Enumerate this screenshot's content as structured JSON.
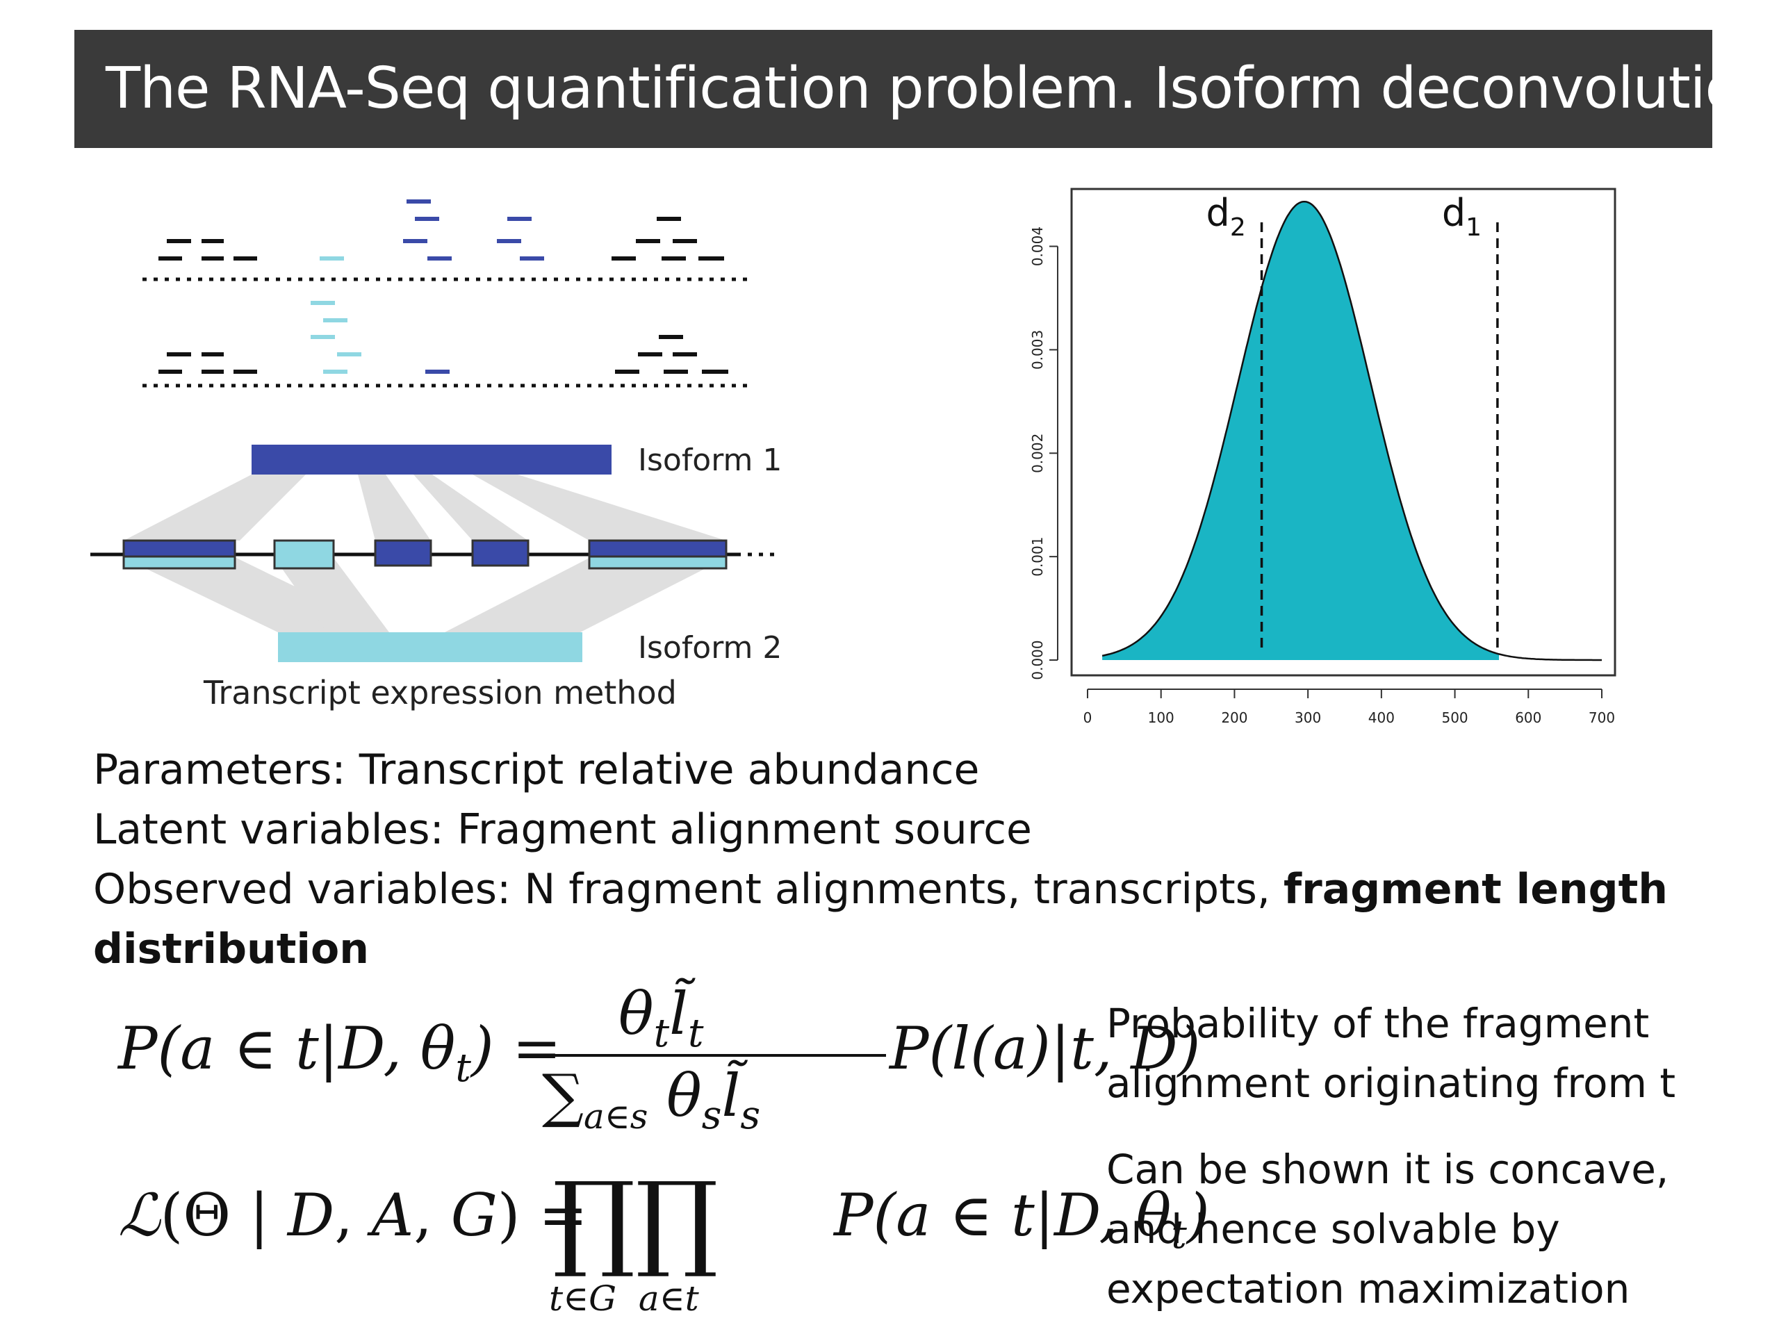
{
  "slide": {
    "title": "The RNA-Seq quantification problem. Isoform deconvolution"
  },
  "schematic": {
    "isoform1_label": "Isoform 1",
    "isoform2_label": "Isoform 2",
    "caption": "Transcript expression method",
    "colors": {
      "isoform1": "#3a4aa8",
      "isoform2": "#8fd7e2",
      "read_black": "#111111"
    }
  },
  "chart_data": {
    "type": "area",
    "x_ticks": [
      "0",
      "100",
      "200",
      "300",
      "400",
      "500",
      "600",
      "700"
    ],
    "y_ticks": [
      "0.000",
      "0.001",
      "0.002",
      "0.003",
      "0.004"
    ],
    "xlim": [
      0,
      700
    ],
    "ylim": [
      0,
      0.0044
    ],
    "fill_color": "#1ab5c4",
    "distribution": {
      "shape": "normal",
      "mean": 295,
      "sd": 90,
      "x_start": 20,
      "x_end": 700
    },
    "markers": [
      {
        "label": "d",
        "subscript": "2",
        "x": 237
      },
      {
        "label": "d",
        "subscript": "1",
        "x": 558
      }
    ]
  },
  "text": {
    "parameters": "Parameters:   Transcript relative abundance",
    "latent": "Latent variables: Fragment alignment source",
    "observed_prefix": "Observed variables: N fragment alignments, transcripts, ",
    "observed_bold": "fragment length",
    "observed_bold_cont": "distribution"
  },
  "notes": {
    "prob_line1": "Probability of the fragment",
    "prob_line2": "alignment originating from t",
    "concave_line1": "Can be shown it is concave,",
    "concave_line2": "and hence solvable by",
    "concave_line3": "expectation maximization"
  }
}
